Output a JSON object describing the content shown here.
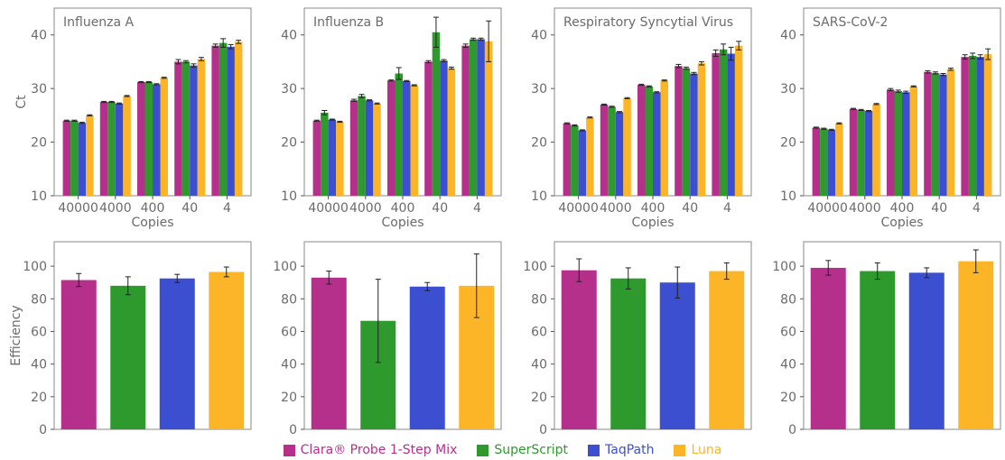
{
  "series": [
    {
      "name": "Clara® Probe 1-Step Mix",
      "color": "#b5308b"
    },
    {
      "name": "SuperScript",
      "color": "#2e9a2e"
    },
    {
      "name": "TaqPath",
      "color": "#3b4fd0"
    },
    {
      "name": "Luna",
      "color": "#fbb526"
    }
  ],
  "labels": {
    "ct_axis": "Ct",
    "eff_axis": "Efficiency",
    "copies_axis": "Copies"
  },
  "panels": [
    "Influenza A",
    "Influenza B",
    "Respiratory Syncytial Virus",
    "SARS-CoV-2"
  ],
  "chart_data": [
    {
      "type": "bar",
      "title": "Influenza A",
      "xlabel": "Copies",
      "ylabel": "Ct",
      "categories": [
        "40000",
        "4000",
        "400",
        "40",
        "4"
      ],
      "ylim": [
        10,
        45
      ],
      "yticks": [
        10,
        20,
        30,
        40
      ],
      "grid": false,
      "series": [
        {
          "name": "Clara® Probe 1-Step Mix",
          "values": [
            24.0,
            27.5,
            31.2,
            35.0,
            38.0
          ],
          "errors": [
            0.1,
            0.1,
            0.1,
            0.4,
            0.3
          ]
        },
        {
          "name": "SuperScript",
          "values": [
            24.0,
            27.5,
            31.2,
            35.0,
            38.5
          ],
          "errors": [
            0.1,
            0.1,
            0.1,
            0.2,
            0.8
          ]
        },
        {
          "name": "TaqPath",
          "values": [
            23.6,
            27.2,
            30.8,
            34.3,
            37.8
          ],
          "errors": [
            0.1,
            0.1,
            0.1,
            0.3,
            0.4
          ]
        },
        {
          "name": "Luna",
          "values": [
            25.0,
            28.6,
            32.0,
            35.5,
            38.7
          ],
          "errors": [
            0.1,
            0.1,
            0.1,
            0.3,
            0.3
          ]
        }
      ]
    },
    {
      "type": "bar",
      "title": "Influenza B",
      "xlabel": "Copies",
      "ylabel": "Ct",
      "categories": [
        "40000",
        "4000",
        "400",
        "40",
        "4"
      ],
      "ylim": [
        10,
        45
      ],
      "yticks": [
        10,
        20,
        30,
        40
      ],
      "grid": false,
      "series": [
        {
          "name": "Clara® Probe 1-Step Mix",
          "values": [
            24.0,
            27.8,
            31.5,
            35.0,
            38.0
          ],
          "errors": [
            0.1,
            0.2,
            0.1,
            0.2,
            0.3
          ]
        },
        {
          "name": "SuperScript",
          "values": [
            25.5,
            28.6,
            32.8,
            40.5,
            39.2
          ],
          "errors": [
            0.4,
            0.3,
            1.1,
            2.8,
            0.2
          ]
        },
        {
          "name": "TaqPath",
          "values": [
            24.2,
            27.8,
            31.4,
            35.2,
            39.2
          ],
          "errors": [
            0.1,
            0.1,
            0.1,
            0.2,
            0.2
          ]
        },
        {
          "name": "Luna",
          "values": [
            23.8,
            27.2,
            30.6,
            33.8,
            38.8
          ],
          "errors": [
            0.1,
            0.1,
            0.1,
            0.2,
            3.8
          ]
        }
      ]
    },
    {
      "type": "bar",
      "title": "Respiratory Syncytial Virus",
      "xlabel": "Copies",
      "ylabel": "Ct",
      "categories": [
        "40000",
        "4000",
        "400",
        "40",
        "4"
      ],
      "ylim": [
        10,
        45
      ],
      "yticks": [
        10,
        20,
        30,
        40
      ],
      "grid": false,
      "series": [
        {
          "name": "Clara® Probe 1-Step Mix",
          "values": [
            23.5,
            27.0,
            30.7,
            34.2,
            36.6
          ],
          "errors": [
            0.1,
            0.1,
            0.1,
            0.3,
            0.6
          ]
        },
        {
          "name": "SuperScript",
          "values": [
            23.1,
            26.6,
            30.4,
            33.8,
            37.3
          ],
          "errors": [
            0.1,
            0.1,
            0.1,
            0.2,
            1.0
          ]
        },
        {
          "name": "TaqPath",
          "values": [
            22.2,
            25.6,
            29.3,
            32.8,
            36.5
          ],
          "errors": [
            0.1,
            0.1,
            0.1,
            0.2,
            1.2
          ]
        },
        {
          "name": "Luna",
          "values": [
            24.6,
            28.2,
            31.5,
            34.7,
            38.0
          ],
          "errors": [
            0.1,
            0.1,
            0.1,
            0.3,
            0.8
          ]
        }
      ]
    },
    {
      "type": "bar",
      "title": "SARS-CoV-2",
      "xlabel": "Copies",
      "ylabel": "Ct",
      "categories": [
        "40000",
        "4000",
        "400",
        "40",
        "4"
      ],
      "ylim": [
        10,
        45
      ],
      "yticks": [
        10,
        20,
        30,
        40
      ],
      "grid": false,
      "series": [
        {
          "name": "Clara® Probe 1-Step Mix",
          "values": [
            22.7,
            26.2,
            29.8,
            33.1,
            35.9
          ],
          "errors": [
            0.1,
            0.1,
            0.2,
            0.2,
            0.4
          ]
        },
        {
          "name": "SuperScript",
          "values": [
            22.5,
            26.0,
            29.5,
            32.9,
            36.1
          ],
          "errors": [
            0.1,
            0.1,
            0.2,
            0.2,
            0.5
          ]
        },
        {
          "name": "TaqPath",
          "values": [
            22.3,
            25.8,
            29.3,
            32.6,
            35.9
          ],
          "errors": [
            0.1,
            0.1,
            0.2,
            0.2,
            0.4
          ]
        },
        {
          "name": "Luna",
          "values": [
            23.5,
            27.1,
            30.4,
            33.6,
            36.4
          ],
          "errors": [
            0.1,
            0.1,
            0.1,
            0.2,
            1.0
          ]
        }
      ]
    },
    {
      "type": "bar",
      "panel": "Influenza A",
      "ylabel": "Efficiency",
      "ylim": [
        0,
        115
      ],
      "yticks": [
        0,
        20,
        40,
        60,
        80,
        100
      ],
      "grid": false,
      "categories": [
        "Clara® Probe 1-Step Mix",
        "SuperScript",
        "TaqPath",
        "Luna"
      ],
      "values": [
        91.5,
        88.0,
        92.5,
        96.5
      ],
      "errors": [
        4.0,
        5.5,
        2.5,
        3.0
      ]
    },
    {
      "type": "bar",
      "panel": "Influenza B",
      "ylabel": "Efficiency",
      "ylim": [
        0,
        115
      ],
      "yticks": [
        0,
        20,
        40,
        60,
        80,
        100
      ],
      "grid": false,
      "categories": [
        "Clara® Probe 1-Step Mix",
        "SuperScript",
        "TaqPath",
        "Luna"
      ],
      "values": [
        93.0,
        66.5,
        87.5,
        88.0
      ],
      "errors": [
        4.0,
        25.5,
        2.5,
        19.5
      ]
    },
    {
      "type": "bar",
      "panel": "Respiratory Syncytial Virus",
      "ylabel": "Efficiency",
      "ylim": [
        0,
        115
      ],
      "yticks": [
        0,
        20,
        40,
        60,
        80,
        100
      ],
      "grid": false,
      "categories": [
        "Clara® Probe 1-Step Mix",
        "SuperScript",
        "TaqPath",
        "Luna"
      ],
      "values": [
        97.5,
        92.5,
        90.0,
        97.0
      ],
      "errors": [
        7.0,
        6.5,
        9.5,
        5.0
      ]
    },
    {
      "type": "bar",
      "panel": "SARS-CoV-2",
      "ylabel": "Efficiency",
      "ylim": [
        0,
        115
      ],
      "yticks": [
        0,
        20,
        40,
        60,
        80,
        100
      ],
      "grid": false,
      "categories": [
        "Clara® Probe 1-Step Mix",
        "SuperScript",
        "TaqPath",
        "Luna"
      ],
      "values": [
        99.0,
        97.0,
        96.0,
        103.0
      ],
      "errors": [
        4.5,
        5.0,
        3.0,
        7.0
      ]
    }
  ]
}
